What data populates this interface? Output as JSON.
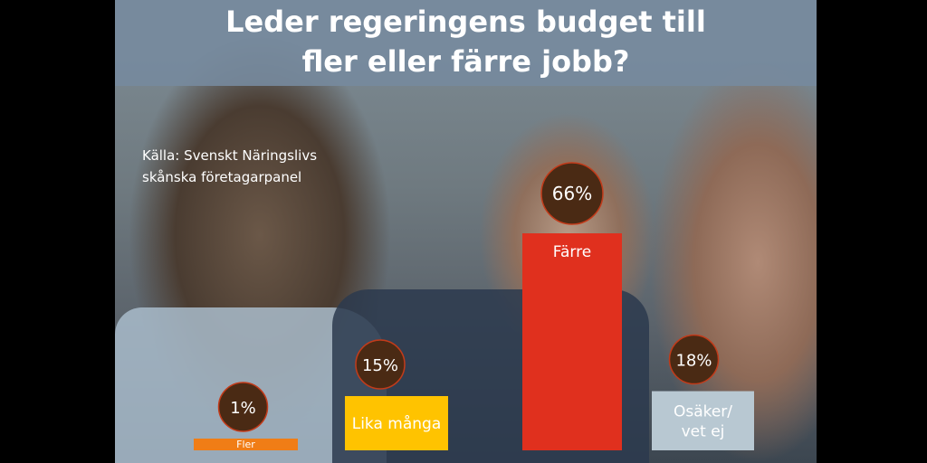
{
  "title_lines": [
    "Leder regeringens budget till",
    "fler eller färre jobb?"
  ],
  "source_lines": [
    "Källa: Svenskt Näringslivs",
    "skånska företagarpanel"
  ],
  "chart_data": {
    "type": "bar",
    "title": "Leder regeringens budget till fler eller färre jobb?",
    "categories": [
      "Fler",
      "Lika många",
      "Färre",
      "Osäker/ vet ej"
    ],
    "category_lines": [
      [
        "Fler"
      ],
      [
        "Lika många"
      ],
      [
        "Färre"
      ],
      [
        "Osäker/",
        "vet ej"
      ]
    ],
    "values": [
      1,
      15,
      66,
      18
    ],
    "value_labels": [
      "1%",
      "15%",
      "66%",
      "18%"
    ],
    "colors": [
      "#f07d16",
      "#ffc300",
      "#e0301e",
      "#b8c8d2"
    ],
    "label_colors": [
      "#ffffff",
      "#ffffff",
      "#ffffff",
      "#ffffff"
    ],
    "badge_color": "#4a2a14",
    "ylim": [
      0,
      66
    ],
    "grid": false,
    "legend": "none"
  }
}
